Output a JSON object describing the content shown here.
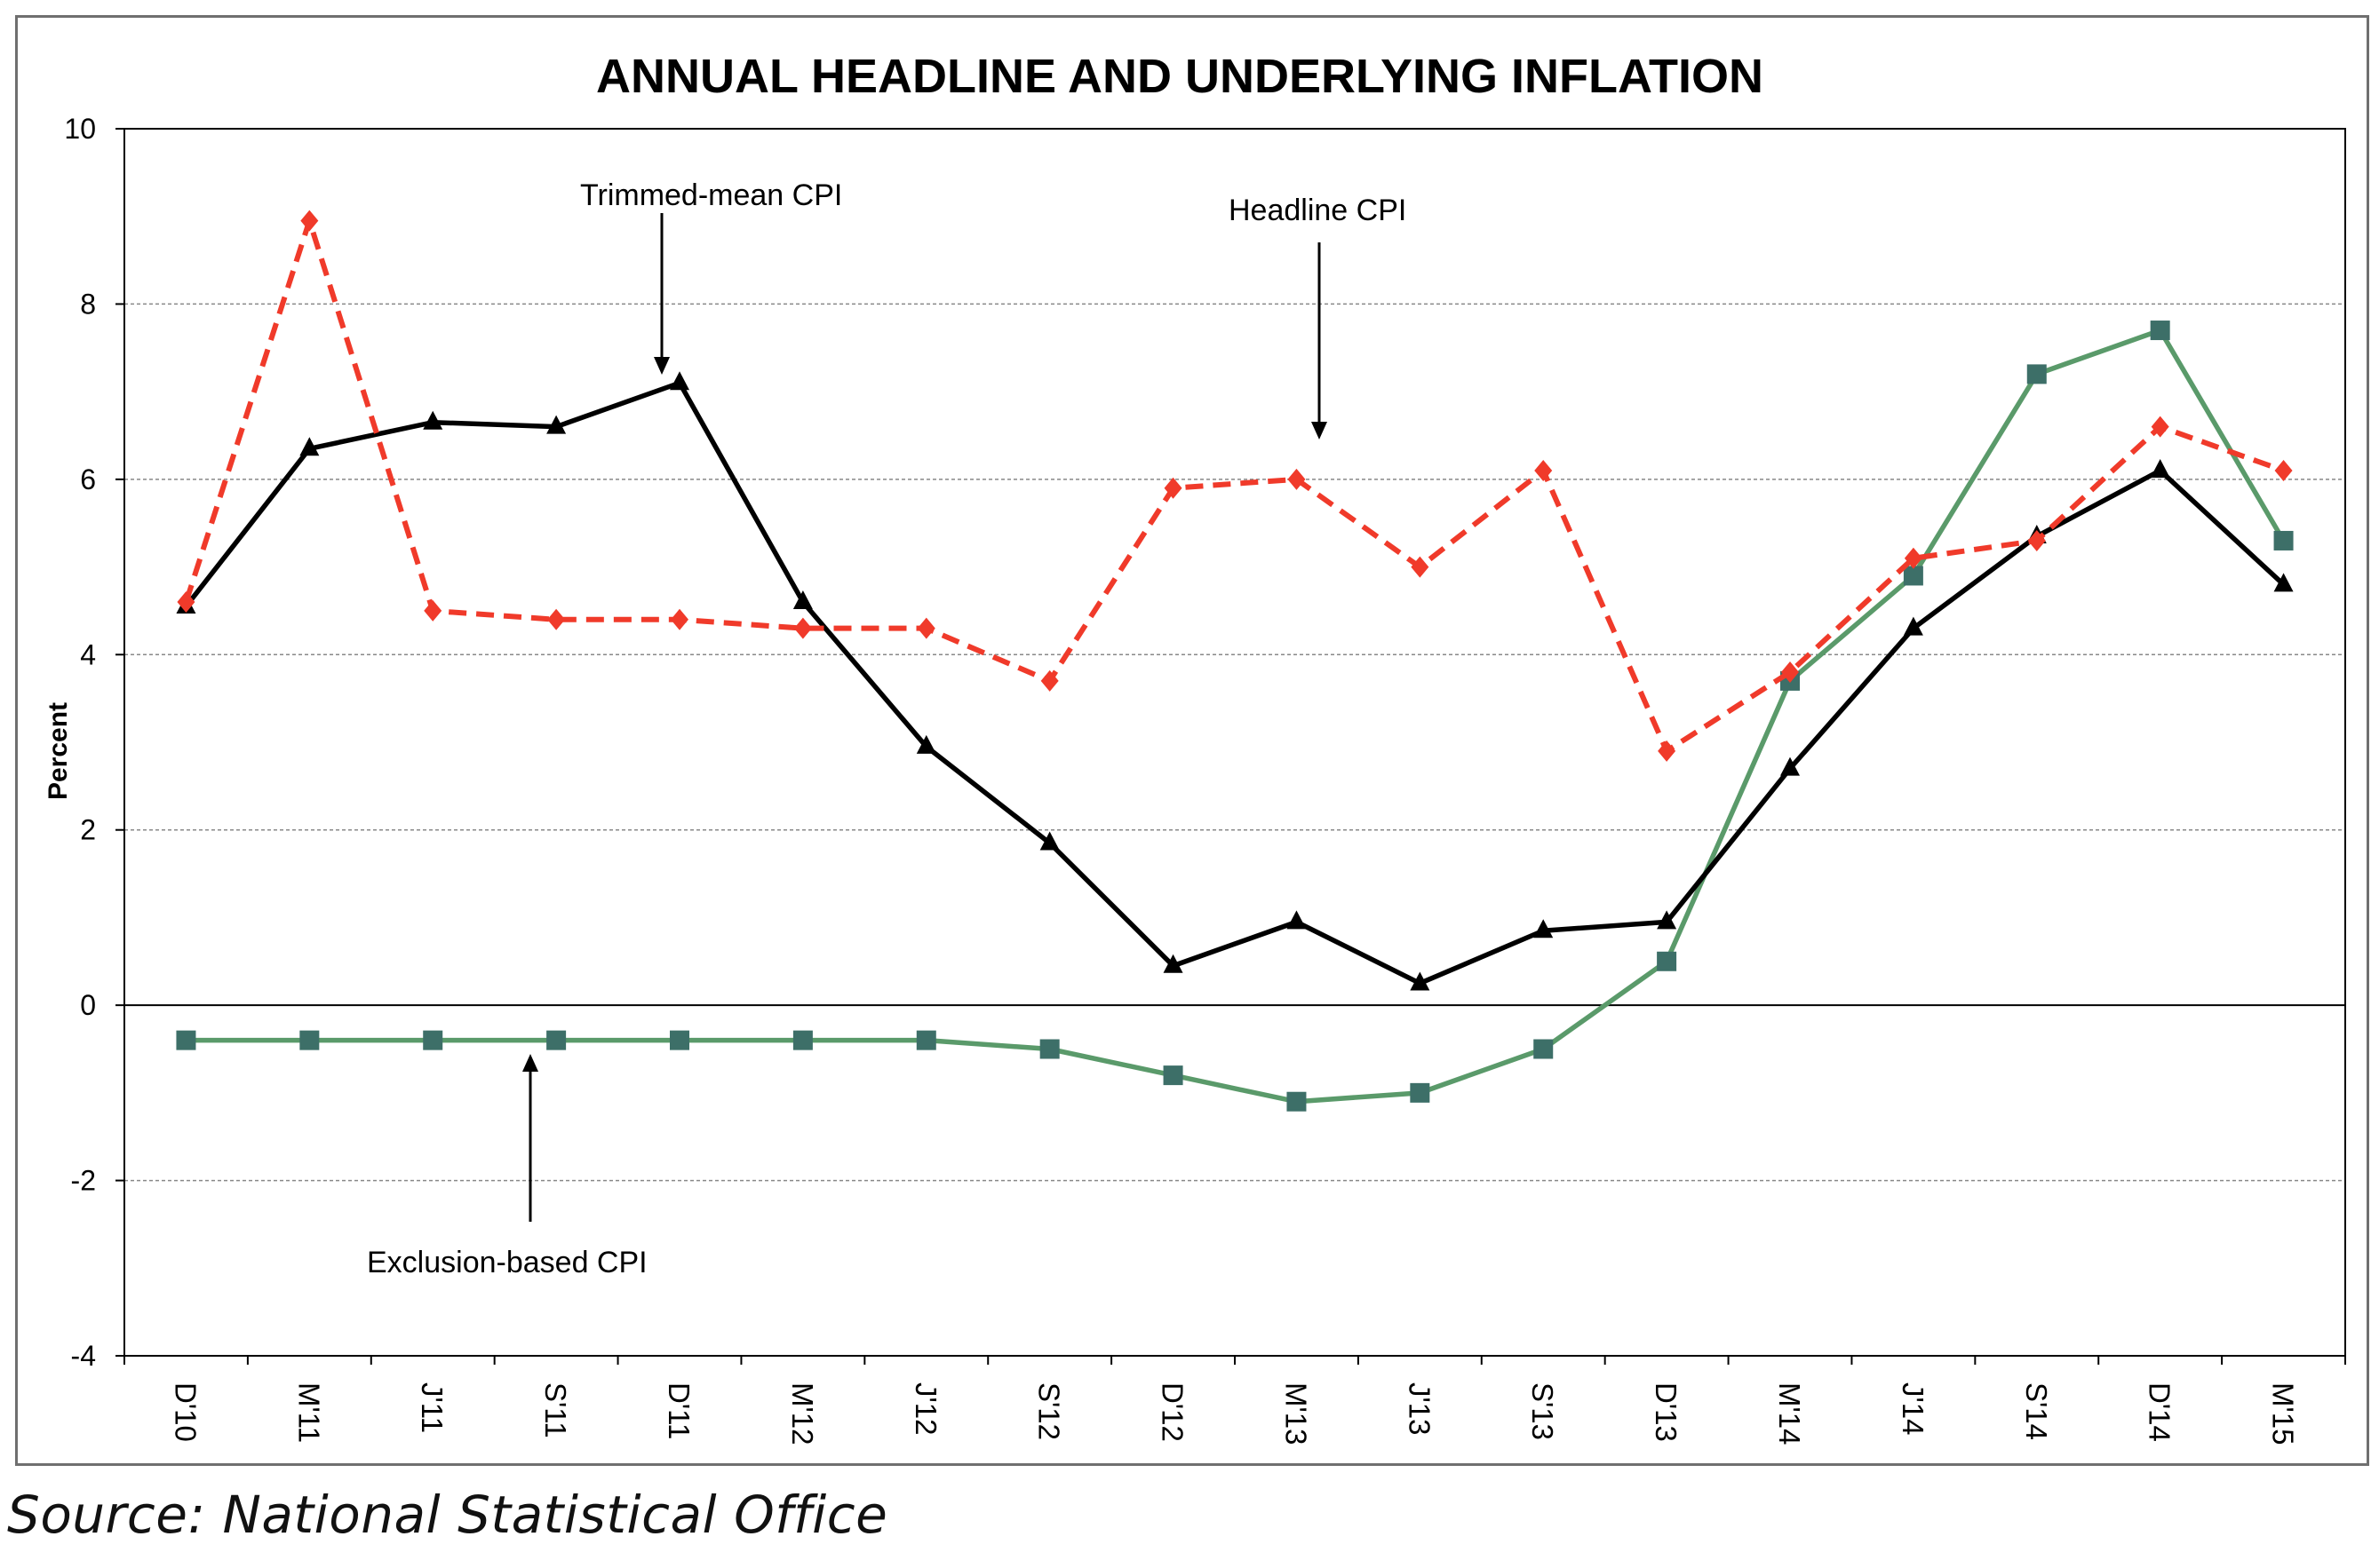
{
  "chart_data": {
    "type": "line",
    "title": "ANNUAL HEADLINE AND UNDERLYING INFLATION",
    "ylabel": "Percent",
    "xlabel": "",
    "ylim": [
      -4,
      10
    ],
    "yticks": [
      10,
      8,
      6,
      4,
      2,
      0,
      -2,
      -4
    ],
    "grid": true,
    "categories": [
      "D'10",
      "M'11",
      "J'11",
      "S'11",
      "D'11",
      "M'12",
      "J'12",
      "S'12",
      "D'12",
      "M'13",
      "J'13",
      "S'13",
      "D'13",
      "M'14",
      "J'14",
      "S'14",
      "D'14",
      "M'15"
    ],
    "series": [
      {
        "name": "Headline CPI",
        "color": "#f03a2a",
        "line_style": "dashed",
        "marker": "diamond",
        "values": [
          4.6,
          8.95,
          4.5,
          4.4,
          4.4,
          4.3,
          4.3,
          3.7,
          5.9,
          6.0,
          5.0,
          6.1,
          2.9,
          3.8,
          5.1,
          5.3,
          6.6,
          6.1
        ]
      },
      {
        "name": "Trimmed-mean CPI",
        "color": "#000000",
        "line_style": "solid",
        "marker": "triangle",
        "values": [
          4.55,
          6.35,
          6.65,
          6.6,
          7.1,
          4.6,
          2.95,
          1.85,
          0.45,
          0.95,
          0.25,
          0.85,
          0.95,
          2.7,
          4.3,
          5.35,
          6.1,
          4.8
        ]
      },
      {
        "name": "Exclusion-based CPI",
        "color": "#5a9a6a",
        "line_style": "solid",
        "marker": "square",
        "values": [
          -0.4,
          -0.4,
          -0.4,
          -0.4,
          -0.4,
          -0.4,
          -0.4,
          -0.5,
          -0.8,
          -1.1,
          -1.0,
          -0.5,
          0.5,
          3.7,
          4.9,
          7.2,
          7.7,
          5.3
        ]
      }
    ],
    "annotations": [
      {
        "text": "Trimmed-mean CPI",
        "series": "Trimmed-mean CPI",
        "category": "D'11"
      },
      {
        "text": "Headline CPI",
        "series": "Headline CPI",
        "category": "M'13"
      },
      {
        "text": "Exclusion-based CPI",
        "series": "Exclusion-based CPI",
        "category": "S'11"
      }
    ]
  },
  "source": "Source: National Statistical Office",
  "colors": {
    "grid": "#888888",
    "frame": "#6f6f6f",
    "square_marker": "#3d6f68"
  }
}
